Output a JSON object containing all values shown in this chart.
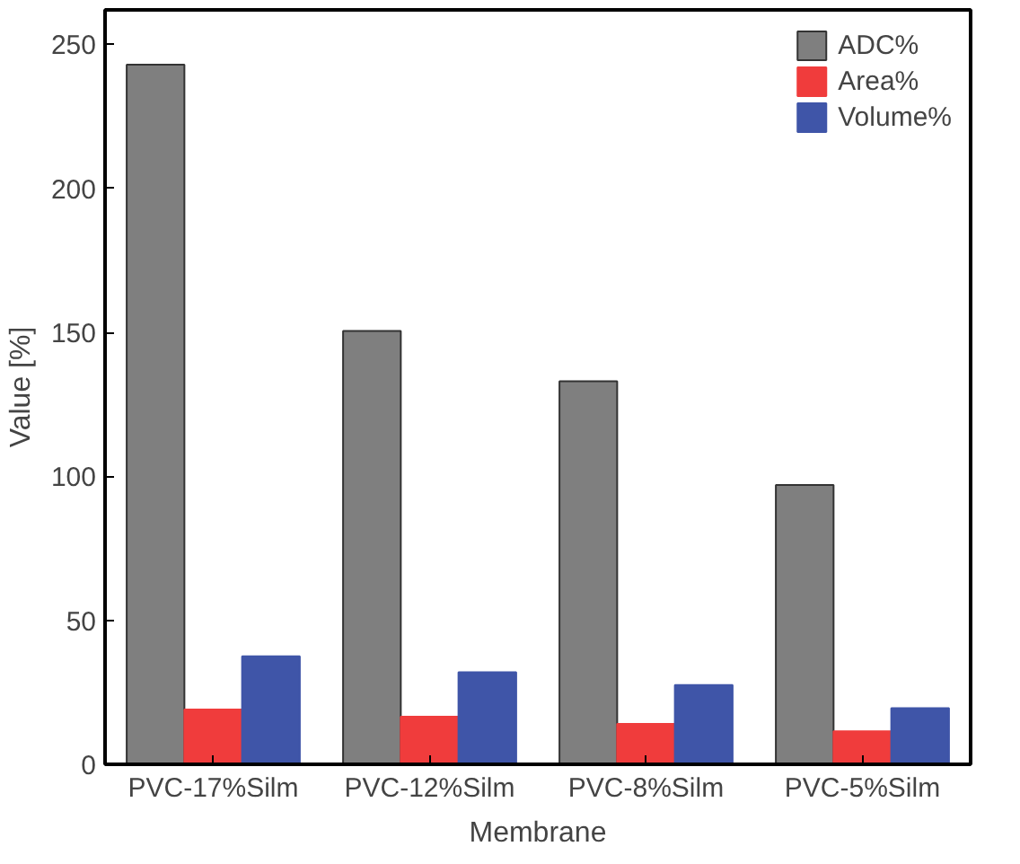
{
  "chart_data": {
    "type": "bar",
    "xlabel": "Membrane",
    "ylabel": "Value [%]",
    "categories": [
      "PVC-17%Silm",
      "PVC-12%Silm",
      "PVC-8%Silm",
      "PVC-5%Silm"
    ],
    "series": [
      {
        "name": "ADC%",
        "color": "#7f7f7f",
        "values": [
          243,
          150.5,
          133,
          97
        ]
      },
      {
        "name": "Area%",
        "color": "#f03c3c",
        "values": [
          19,
          16.5,
          14,
          11.5
        ]
      },
      {
        "name": "Volume%",
        "color": "#3f55a8",
        "values": [
          37.5,
          32,
          27.5,
          19.5
        ]
      }
    ],
    "ylim": [
      0,
      262
    ],
    "yticks": [
      0,
      50,
      100,
      150,
      200,
      250
    ],
    "grid": false,
    "legend": "top right"
  }
}
